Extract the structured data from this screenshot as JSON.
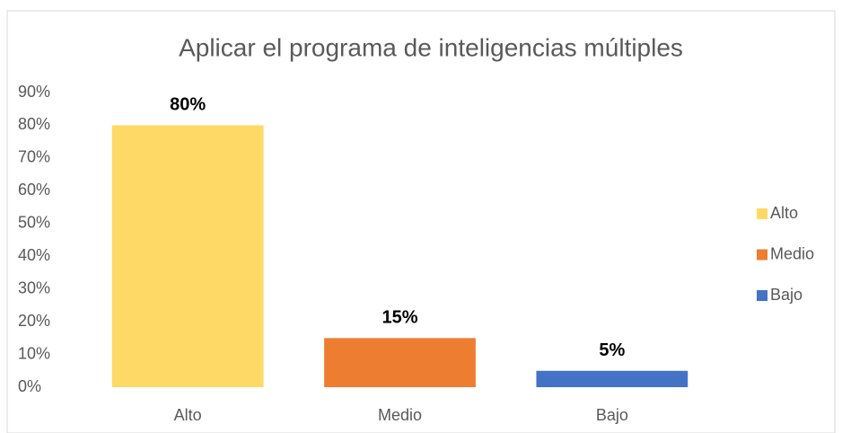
{
  "chart_data": {
    "type": "bar",
    "title": "Aplicar el programa de inteligencias múltiples",
    "categories": [
      "Alto",
      "Medio",
      "Bajo"
    ],
    "values": [
      80,
      15,
      5
    ],
    "value_labels": [
      "80%",
      "15%",
      "5%"
    ],
    "colors": [
      "#ffd966",
      "#ed7d31",
      "#4472c4"
    ],
    "ylim": [
      0,
      90
    ],
    "yticks": [
      {
        "value": 0,
        "label": "0%"
      },
      {
        "value": 10,
        "label": "10%"
      },
      {
        "value": 20,
        "label": "20%"
      },
      {
        "value": 30,
        "label": "30%"
      },
      {
        "value": 40,
        "label": "40%"
      },
      {
        "value": 50,
        "label": "50%"
      },
      {
        "value": 60,
        "label": "60%"
      },
      {
        "value": 70,
        "label": "70%"
      },
      {
        "value": 80,
        "label": "80%"
      },
      {
        "value": 90,
        "label": "90%"
      }
    ],
    "grid": false,
    "legend": "right"
  }
}
